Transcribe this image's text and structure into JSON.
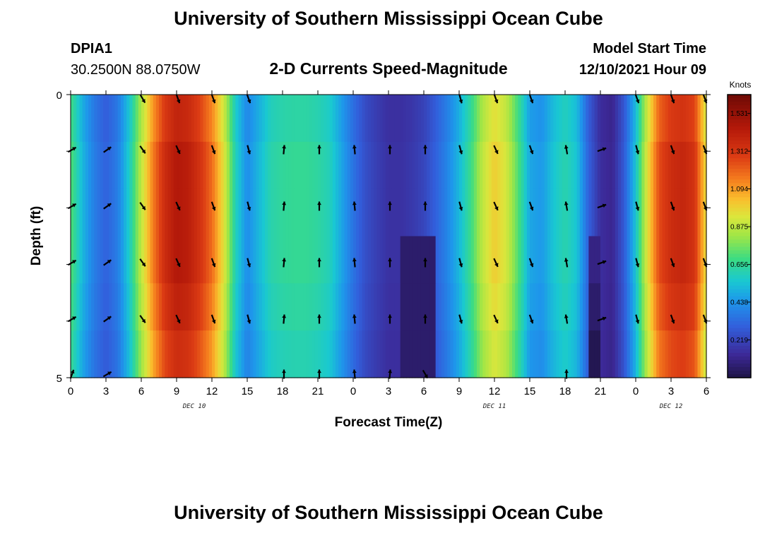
{
  "header": {
    "title": "University of Southern Mississippi Ocean Cube",
    "station_id": "DPIA1",
    "coordinates": "30.2500N  88.0750W",
    "product": "2-D Currents Speed-Magnitude",
    "model_start_label": "Model Start Time",
    "model_start_value": "12/10/2021 Hour 09",
    "footer_title": "University of Southern Mississippi Ocean Cube"
  },
  "chart_data": {
    "type": "heatmap",
    "title": "2-D Currents Speed-Magnitude",
    "xlabel": "Forecast Time(Z)",
    "ylabel": "Depth (ft)",
    "x_ticks": [
      "0",
      "3",
      "6",
      "9",
      "12",
      "15",
      "18",
      "21",
      "0",
      "3",
      "6",
      "9",
      "12",
      "15",
      "18",
      "21",
      "0",
      "3",
      "6"
    ],
    "x_hours": [
      0,
      3,
      6,
      9,
      12,
      15,
      18,
      21,
      24,
      27,
      30,
      33,
      36,
      39,
      42,
      45,
      48,
      51,
      54
    ],
    "date_labels": [
      {
        "text": "DEC 10",
        "hour": 10.5
      },
      {
        "text": "DEC 11",
        "hour": 36
      },
      {
        "text": "DEC 12",
        "hour": 51
      }
    ],
    "xlim": [
      0,
      54
    ],
    "ylim": [
      0,
      5
    ],
    "y_ticks": [
      "0",
      "5"
    ],
    "depth_rows": [
      0,
      1,
      2,
      3,
      4,
      5
    ],
    "colorbar": {
      "units": "Knots",
      "ticks": [
        "1.531",
        "1.312",
        "1.094",
        "0.875",
        "0.656",
        "0.438",
        "0.219"
      ],
      "tick_values": [
        1.531,
        1.312,
        1.094,
        0.875,
        0.656,
        0.438,
        0.219
      ],
      "range": [
        0.0,
        1.64
      ]
    },
    "speed_profile": {
      "hours": [
        0,
        1,
        2,
        3,
        4,
        5,
        6,
        7,
        8,
        9,
        10,
        11,
        12,
        13,
        14,
        15,
        16,
        17,
        18,
        19,
        20,
        21,
        22,
        23,
        24,
        25,
        26,
        27,
        28,
        29,
        30,
        31,
        32,
        33,
        34,
        35,
        36,
        37,
        38,
        39,
        40,
        41,
        42,
        43,
        44,
        45,
        46,
        47,
        48,
        49,
        50,
        51,
        52,
        53,
        54
      ],
      "knots": [
        0.72,
        0.52,
        0.38,
        0.3,
        0.38,
        0.58,
        0.88,
        1.15,
        1.35,
        1.45,
        1.42,
        1.32,
        1.18,
        0.95,
        0.6,
        0.42,
        0.52,
        0.62,
        0.65,
        0.66,
        0.66,
        0.64,
        0.6,
        0.48,
        0.35,
        0.25,
        0.2,
        0.16,
        0.16,
        0.18,
        0.22,
        0.3,
        0.4,
        0.52,
        0.68,
        0.88,
        1.0,
        0.92,
        0.72,
        0.48,
        0.45,
        0.55,
        0.62,
        0.55,
        0.3,
        0.15,
        0.12,
        0.28,
        0.55,
        0.95,
        1.25,
        1.35,
        1.38,
        1.32,
        0.95
      ]
    },
    "depth_modifier": [
      0.96,
      1.0,
      1.0,
      1.0,
      0.97,
      0.93
    ],
    "low_cell": {
      "start_hour": 28,
      "end_hour": 31,
      "row_from": 3,
      "knots": 0.06
    },
    "low_cell_2": {
      "start_hour": 44,
      "end_hour": 45,
      "row_from": 3,
      "knots": 0.02
    },
    "vectors": {
      "hours": [
        0,
        3,
        6,
        9,
        12,
        15,
        18,
        21,
        24,
        27,
        30,
        33,
        36,
        39,
        42,
        45,
        48,
        51,
        54
      ],
      "directions_deg_row0": [
        null,
        null,
        150,
        160,
        160,
        160,
        null,
        null,
        null,
        null,
        null,
        165,
        160,
        160,
        null,
        null,
        160,
        160,
        160
      ],
      "directions_deg": [
        60,
        55,
        145,
        155,
        160,
        165,
        5,
        0,
        355,
        0,
        0,
        165,
        155,
        160,
        350,
        70,
        165,
        160,
        160
      ],
      "directions_deg_row5": [
        20,
        60,
        null,
        null,
        null,
        null,
        0,
        0,
        355,
        5,
        150,
        null,
        null,
        null,
        0,
        null,
        null,
        null,
        null
      ]
    }
  }
}
